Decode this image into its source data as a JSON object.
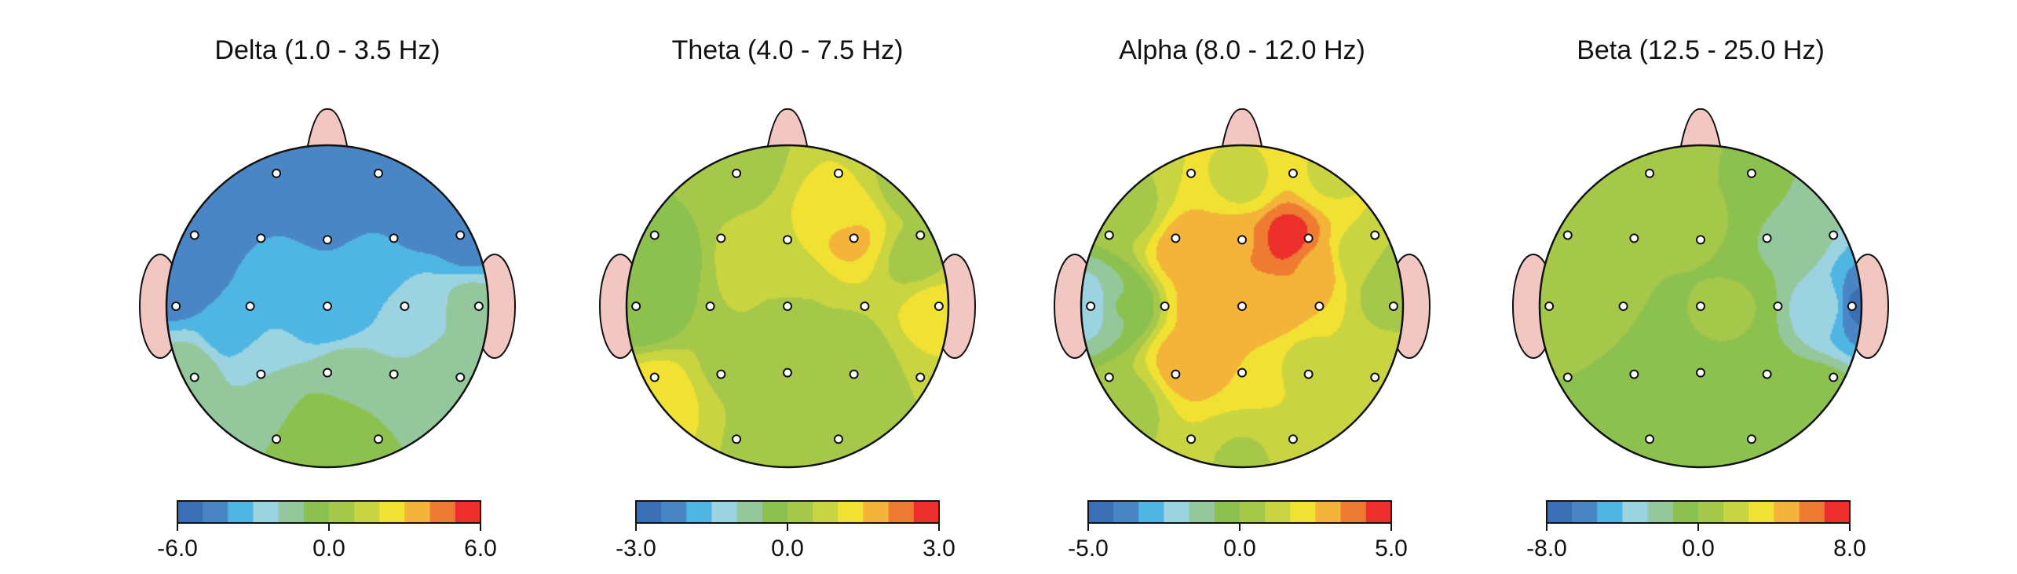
{
  "chart_data": {
    "type": "heatmap",
    "subtype": "topographic-scalp-maps",
    "colors": [
      "#3a6fb6",
      "#4a86c6",
      "#4fb6e3",
      "#9bd3e1",
      "#95c79c",
      "#8cc150",
      "#a6c84a",
      "#c9d540",
      "#f0e132",
      "#f4b43a",
      "#ef7b33",
      "#ec2f2c"
    ],
    "electrodes": [
      {
        "id": "e01",
        "pos": [
          -0.33,
          -0.86
        ]
      },
      {
        "id": "e02",
        "pos": [
          0.33,
          -0.86
        ]
      },
      {
        "id": "e03",
        "pos": [
          -0.86,
          -0.46
        ]
      },
      {
        "id": "e04",
        "pos": [
          -0.43,
          -0.44
        ]
      },
      {
        "id": "e05",
        "pos": [
          0.0,
          -0.43
        ]
      },
      {
        "id": "e06",
        "pos": [
          0.43,
          -0.44
        ]
      },
      {
        "id": "e07",
        "pos": [
          0.86,
          -0.46
        ]
      },
      {
        "id": "e08",
        "pos": [
          -0.98,
          0.0
        ]
      },
      {
        "id": "e09",
        "pos": [
          -0.5,
          0.0
        ]
      },
      {
        "id": "e10",
        "pos": [
          0.0,
          0.0
        ]
      },
      {
        "id": "e11",
        "pos": [
          0.5,
          0.0
        ]
      },
      {
        "id": "e12",
        "pos": [
          0.98,
          0.0
        ]
      },
      {
        "id": "e13",
        "pos": [
          -0.86,
          0.46
        ]
      },
      {
        "id": "e14",
        "pos": [
          -0.43,
          0.44
        ]
      },
      {
        "id": "e15",
        "pos": [
          0.0,
          0.43
        ]
      },
      {
        "id": "e16",
        "pos": [
          0.43,
          0.44
        ]
      },
      {
        "id": "e17",
        "pos": [
          0.86,
          0.46
        ]
      },
      {
        "id": "e18",
        "pos": [
          -0.33,
          0.86
        ]
      },
      {
        "id": "e19",
        "pos": [
          0.33,
          0.86
        ]
      }
    ],
    "maps": [
      {
        "title": "Delta (1.0 - 3.5 Hz)",
        "range": [
          -6,
          6
        ],
        "ticks": [
          "-6.0",
          "0.0",
          "6.0"
        ],
        "grid": "off",
        "sources": [
          {
            "x": 0.0,
            "y": 0.7,
            "v": -0.5
          },
          {
            "x": -0.5,
            "y": -0.88,
            "v": -5.0
          },
          {
            "x": 0.4,
            "y": -0.9,
            "v": -5.0
          },
          {
            "x": -0.75,
            "y": -0.6,
            "v": -5.0
          },
          {
            "x": 0.0,
            "y": -0.7,
            "v": -5.0
          },
          {
            "x": 0.6,
            "y": -0.62,
            "v": -5.0
          },
          {
            "x": 0.9,
            "y": -0.4,
            "v": -4.5
          },
          {
            "x": -0.92,
            "y": -0.15,
            "v": -5.0
          },
          {
            "x": -0.3,
            "y": -0.2,
            "v": -3.8
          },
          {
            "x": 0.3,
            "y": -0.25,
            "v": -3.8
          },
          {
            "x": -0.6,
            "y": 0.15,
            "v": -3.6
          },
          {
            "x": 0.0,
            "y": 0.05,
            "v": -3.8
          },
          {
            "x": 0.55,
            "y": 0.0,
            "v": -2.6
          },
          {
            "x": 0.9,
            "y": 0.0,
            "v": -1.6
          },
          {
            "x": -0.4,
            "y": 0.4,
            "v": -2.0
          },
          {
            "x": 0.1,
            "y": 0.42,
            "v": -1.6
          },
          {
            "x": -0.85,
            "y": 0.4,
            "v": -1.5
          },
          {
            "x": 0.85,
            "y": 0.45,
            "v": -1.0
          },
          {
            "x": -0.3,
            "y": 0.75,
            "v": -1.0
          },
          {
            "x": 0.3,
            "y": 0.75,
            "v": -1.0
          },
          {
            "x": 0.0,
            "y": 0.95,
            "v": -0.4
          }
        ]
      },
      {
        "title": "Theta (4.0 - 7.5 Hz)",
        "range": [
          -3,
          3
        ],
        "ticks": [
          "-3.0",
          "0.0",
          "3.0"
        ],
        "grid": "off",
        "sources": [
          {
            "x": 0.0,
            "y": 0.0,
            "v": 0.3
          },
          {
            "x": -0.4,
            "y": -0.85,
            "v": 0.0
          },
          {
            "x": 0.35,
            "y": -0.55,
            "v": 1.1
          },
          {
            "x": 0.38,
            "y": -0.45,
            "v": 1.7
          },
          {
            "x": -0.2,
            "y": -0.3,
            "v": 0.9
          },
          {
            "x": 0.0,
            "y": -0.1,
            "v": 0.7
          },
          {
            "x": -0.75,
            "y": -0.3,
            "v": -0.2
          },
          {
            "x": 0.8,
            "y": -0.3,
            "v": 0.3
          },
          {
            "x": -0.9,
            "y": 0.0,
            "v": -0.5
          },
          {
            "x": 0.92,
            "y": 0.02,
            "v": 1.2
          },
          {
            "x": -0.8,
            "y": 0.55,
            "v": 1.3
          },
          {
            "x": -0.35,
            "y": 0.35,
            "v": 0.4
          },
          {
            "x": 0.35,
            "y": 0.35,
            "v": 0.1
          },
          {
            "x": 0.0,
            "y": 0.8,
            "v": 0.2
          },
          {
            "x": 0.7,
            "y": 0.7,
            "v": 0.5
          },
          {
            "x": 0.75,
            "y": -0.75,
            "v": 0.3
          }
        ]
      },
      {
        "title": "Alpha (8.0 - 12.0 Hz)",
        "range": [
          -5,
          5
        ],
        "ticks": [
          "-5.0",
          "0.0",
          "5.0"
        ],
        "grid": "off",
        "sources": [
          {
            "x": 0.0,
            "y": -0.75,
            "v": 1.5
          },
          {
            "x": 0.28,
            "y": -0.42,
            "v": 4.6
          },
          {
            "x": 0.0,
            "y": -0.4,
            "v": 3.3
          },
          {
            "x": -0.35,
            "y": -0.35,
            "v": 3.0
          },
          {
            "x": 0.45,
            "y": -0.25,
            "v": 3.2
          },
          {
            "x": -0.2,
            "y": 0.0,
            "v": 3.0
          },
          {
            "x": 0.2,
            "y": 0.0,
            "v": 3.0
          },
          {
            "x": -0.35,
            "y": 0.35,
            "v": 3.0
          },
          {
            "x": 0.0,
            "y": 0.3,
            "v": 2.5
          },
          {
            "x": 0.4,
            "y": 0.35,
            "v": 1.5
          },
          {
            "x": -0.95,
            "y": 0.0,
            "v": -2.2
          },
          {
            "x": -0.75,
            "y": 0.0,
            "v": -0.8
          },
          {
            "x": 0.92,
            "y": -0.15,
            "v": 0.0
          },
          {
            "x": 0.7,
            "y": -0.3,
            "v": 1.3
          },
          {
            "x": -0.7,
            "y": -0.6,
            "v": 0.6
          },
          {
            "x": -0.7,
            "y": 0.6,
            "v": 0.6
          },
          {
            "x": 0.0,
            "y": 0.95,
            "v": 0.8
          },
          {
            "x": 0.6,
            "y": 0.75,
            "v": 1.4
          },
          {
            "x": 0.9,
            "y": 0.35,
            "v": 0.9
          },
          {
            "x": 0.55,
            "y": -0.8,
            "v": 1.6
          }
        ]
      },
      {
        "title": "Beta (12.5 - 25.0 Hz)",
        "range": [
          -8,
          8
        ],
        "ticks": [
          "-8.0",
          "0.0",
          "8.0"
        ],
        "grid": "off",
        "sources": [
          {
            "x": 0.0,
            "y": 0.0,
            "v": 0.0
          },
          {
            "x": 0.97,
            "y": 0.0,
            "v": -7.0
          },
          {
            "x": 0.78,
            "y": 0.0,
            "v": -3.2
          },
          {
            "x": 0.5,
            "y": -0.38,
            "v": -1.4
          },
          {
            "x": -0.4,
            "y": -0.9,
            "v": 0.7
          },
          {
            "x": -0.8,
            "y": -0.3,
            "v": 0.3
          },
          {
            "x": -0.5,
            "y": 0.0,
            "v": 0.0
          },
          {
            "x": 0.2,
            "y": 0.0,
            "v": 0.1
          },
          {
            "x": -0.4,
            "y": 0.5,
            "v": 0.0
          },
          {
            "x": 0.3,
            "y": 0.5,
            "v": 0.0
          },
          {
            "x": 0.0,
            "y": 0.9,
            "v": 0.0
          },
          {
            "x": 0.7,
            "y": 0.6,
            "v": -0.2
          },
          {
            "x": 0.0,
            "y": -0.5,
            "v": 0.1
          }
        ]
      }
    ]
  }
}
